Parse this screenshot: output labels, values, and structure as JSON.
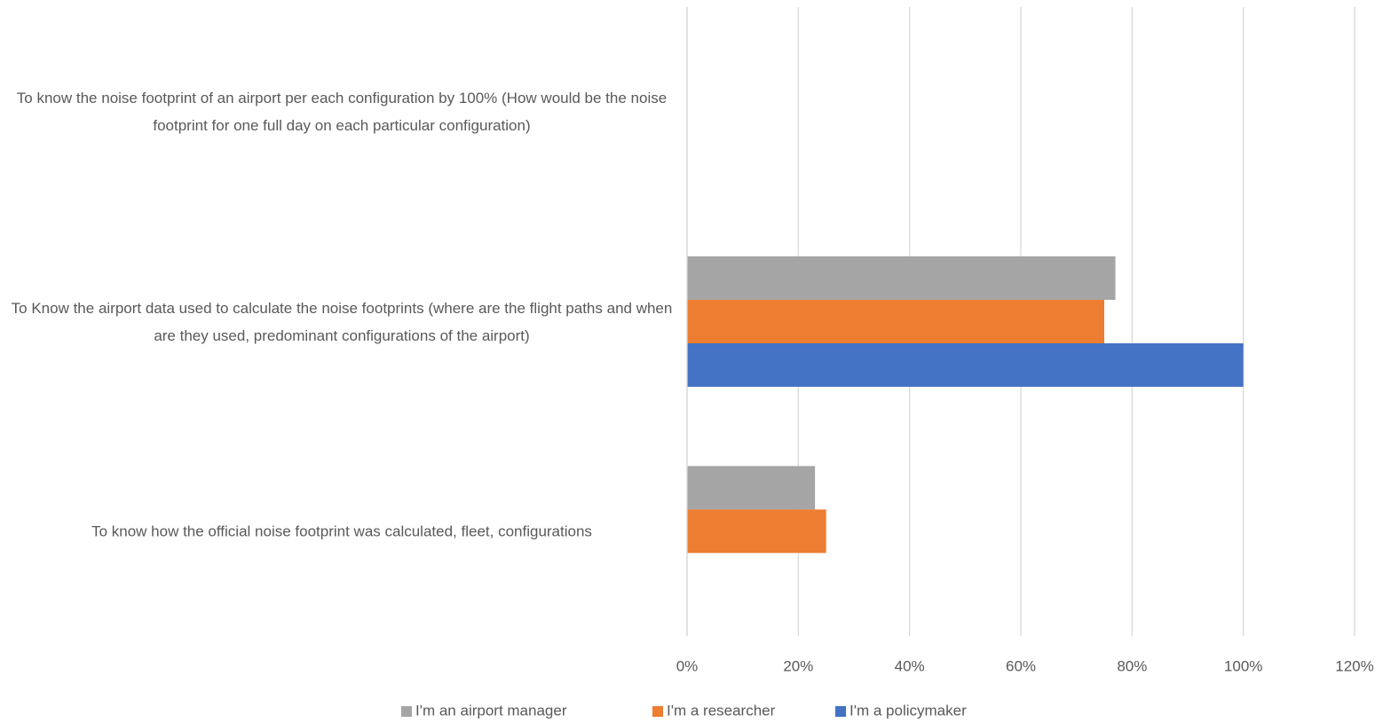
{
  "chart_data": {
    "type": "hbar",
    "categories": [
      "To know the noise footprint of an airport per each configuration by 100% (How would be the noise footprint for one full day on each particular configuration)",
      "To Know the airport data used to calculate the noise footprints (where are the flight paths and when are they used, predominant configurations of the airport)",
      "To know how the official noise footprint was calculated, fleet, configurations"
    ],
    "series": [
      {
        "name": "I'm an airport manager",
        "color": "#a5a5a5",
        "values": [
          0,
          77,
          23
        ]
      },
      {
        "name": "I'm a researcher",
        "color": "#ed7d31",
        "values": [
          0,
          75,
          25
        ]
      },
      {
        "name": "I'm a policymaker",
        "color": "#4472c4",
        "values": [
          0,
          100,
          0
        ]
      }
    ],
    "xlim": [
      0,
      120
    ],
    "xticks": [
      {
        "value": 0,
        "label": "0%"
      },
      {
        "value": 20,
        "label": "20%"
      },
      {
        "value": 40,
        "label": "40%"
      },
      {
        "value": 60,
        "label": "60%"
      },
      {
        "value": 80,
        "label": "80%"
      },
      {
        "value": 100,
        "label": "100%"
      },
      {
        "value": 120,
        "label": "120%"
      }
    ],
    "grid": true,
    "legend": "bottom"
  }
}
